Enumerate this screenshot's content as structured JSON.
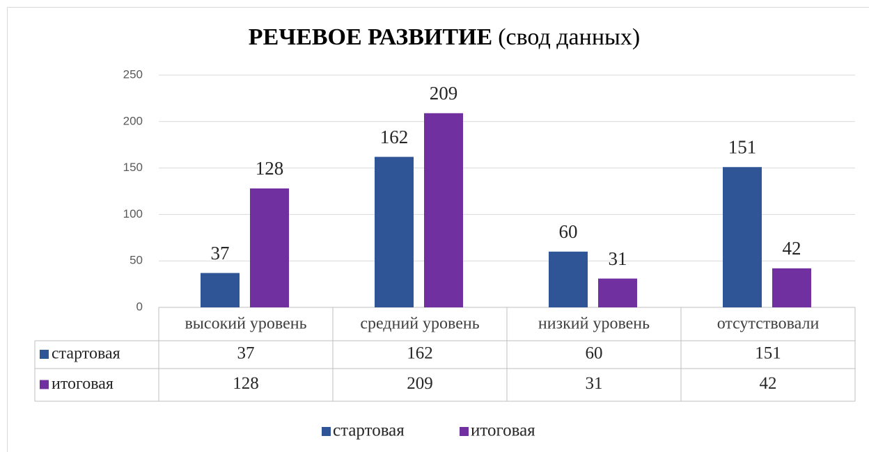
{
  "chart_data": {
    "type": "bar",
    "title": "РЕЧЕВОЕ РАЗВИТИЕ",
    "subtitle": "(свод данных)",
    "categories": [
      "высокий уровень",
      "средний уровень",
      "низкий уровень",
      "отсутствовали"
    ],
    "series": [
      {
        "name": "стартовая",
        "color": "#2f5597",
        "values": [
          37,
          162,
          60,
          151
        ]
      },
      {
        "name": "итоговая",
        "color": "#7030a0",
        "values": [
          128,
          209,
          31,
          42
        ]
      }
    ],
    "ylim": [
      0,
      250
    ],
    "yticks": [
      0,
      50,
      100,
      150,
      200,
      250
    ],
    "grid": true,
    "legend": "bottom"
  }
}
